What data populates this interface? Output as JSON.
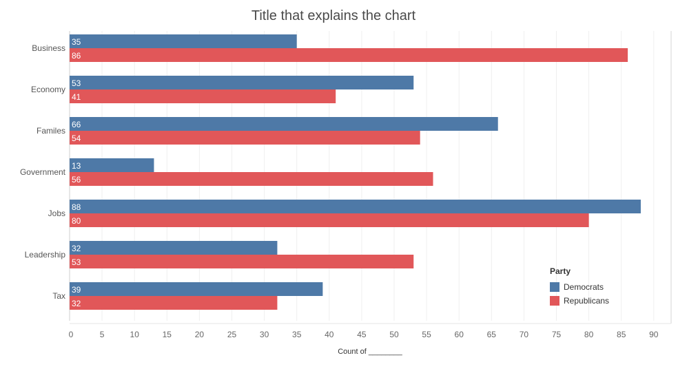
{
  "chart_data": {
    "type": "bar",
    "orientation": "horizontal",
    "title": "Title that explains the chart",
    "xlabel": "Count of ________",
    "ylabel": "",
    "xlim": [
      0,
      90
    ],
    "xticks": [
      0,
      5,
      10,
      15,
      20,
      25,
      30,
      35,
      40,
      45,
      50,
      55,
      60,
      65,
      70,
      75,
      80,
      85,
      90
    ],
    "categories": [
      "Business",
      "Economy",
      "Familes",
      "Government",
      "Jobs",
      "Leadership",
      "Tax"
    ],
    "series": [
      {
        "name": "Democrats",
        "color": "#4e79a7",
        "values": [
          35,
          53,
          66,
          13,
          88,
          32,
          39
        ]
      },
      {
        "name": "Republicans",
        "color": "#e15759",
        "values": [
          86,
          41,
          54,
          56,
          80,
          53,
          32
        ]
      }
    ],
    "legend": {
      "title": "Party",
      "placement": "right"
    },
    "grid": true
  }
}
